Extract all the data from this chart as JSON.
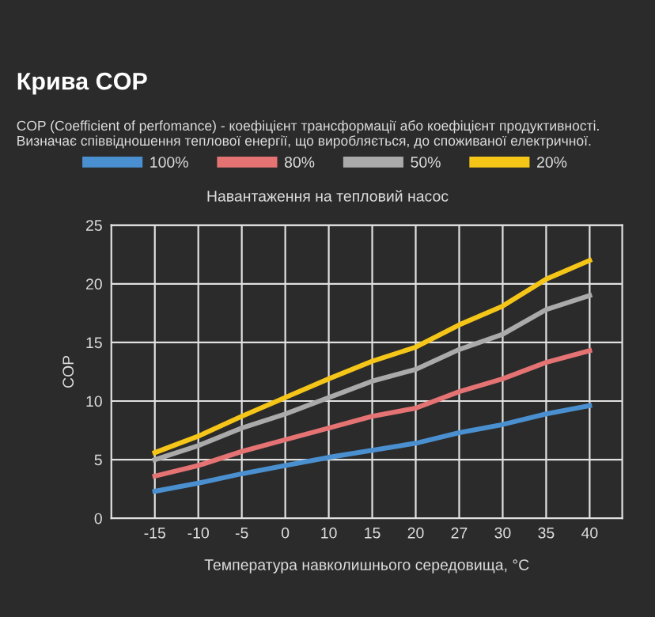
{
  "chart_data": {
    "type": "line",
    "title": "Крива COP",
    "subtitle": "COP (Coefficient of perfomance) - коефіцієнт трансформації або коефіцієнт продуктивності. Визначає співвідношення теплової енергії, що виробляється, до споживаної електричної.",
    "legend_title": "Навантаження на тепловий насос",
    "xlabel": "Температура навколишнього середовища, °C",
    "ylabel": "COP",
    "categories": [
      "-15",
      "-10",
      "-5",
      "0",
      "10",
      "15",
      "20",
      "27",
      "30",
      "35",
      "40"
    ],
    "series": [
      {
        "name": "100%",
        "color": "#4a90d0",
        "values": [
          2.3,
          3.0,
          3.8,
          4.5,
          5.2,
          5.8,
          6.4,
          7.3,
          8.0,
          8.9,
          9.6
        ]
      },
      {
        "name": "80%",
        "color": "#e57373",
        "values": [
          3.6,
          4.5,
          5.7,
          6.7,
          7.7,
          8.7,
          9.4,
          10.8,
          11.9,
          13.3,
          14.3
        ]
      },
      {
        "name": "50%",
        "color": "#aaaaaa",
        "values": [
          5.0,
          6.2,
          7.7,
          8.9,
          10.3,
          11.7,
          12.7,
          14.4,
          15.7,
          17.8,
          19.0
        ]
      },
      {
        "name": "20%",
        "color": "#f5c518",
        "values": [
          5.6,
          7.0,
          8.7,
          10.3,
          11.9,
          13.4,
          14.6,
          16.5,
          18.1,
          20.4,
          22.0
        ]
      }
    ],
    "ylim": [
      0,
      25
    ],
    "yticks": [
      0,
      5,
      10,
      15,
      20,
      25
    ],
    "grid": true,
    "legend": "top",
    "marker": "none",
    "line_style": "solid"
  }
}
